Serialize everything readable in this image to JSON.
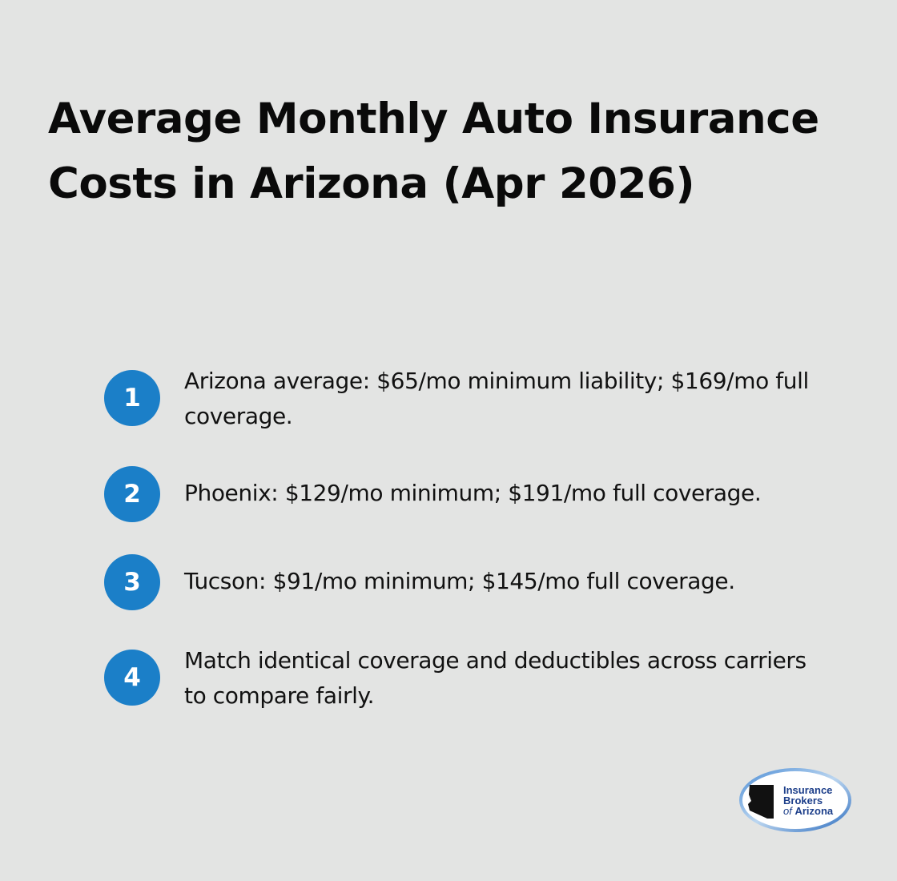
{
  "title": "Average Monthly Auto Insurance Costs in Arizona (Apr 2026)",
  "items": [
    {
      "number": "1",
      "text": "Arizona average: $65/mo minimum liability; $169/mo full coverage."
    },
    {
      "number": "2",
      "text": "Phoenix: $129/mo minimum; $191/mo full coverage."
    },
    {
      "number": "3",
      "text": "Tucson: $91/mo minimum; $145/mo full coverage."
    },
    {
      "number": "4",
      "text": "Match identical coverage and deductibles across carriers to compare fairly."
    }
  ],
  "logo": {
    "line1": "Insurance",
    "line2": "Brokers",
    "line3_prefix": "of",
    "line3": "Arizona"
  },
  "colors": {
    "background": "#e3e4e3",
    "badge": "#1b7fc8",
    "text": "#111111",
    "logo_text": "#1d3f8a"
  }
}
